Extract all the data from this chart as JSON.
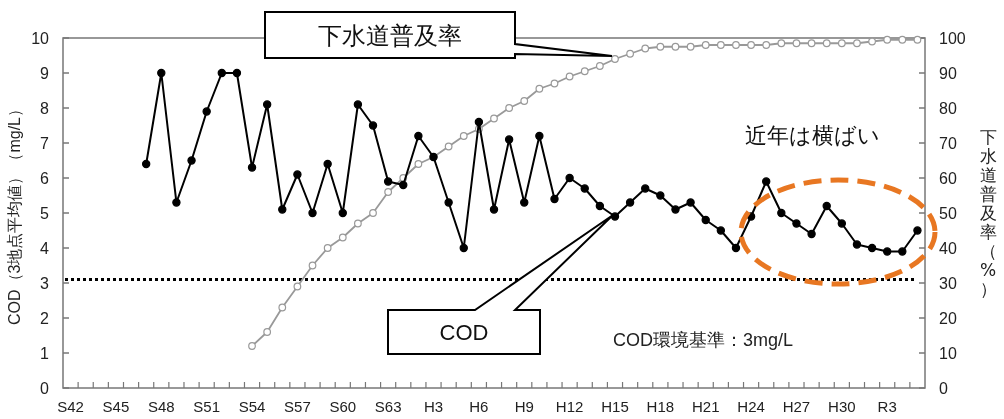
{
  "chart_data": {
    "type": "line",
    "categories": [
      "S42",
      null,
      null,
      "S45",
      null,
      null,
      "S48",
      null,
      null,
      "S51",
      null,
      null,
      "S54",
      null,
      null,
      "S57",
      null,
      null,
      "S60",
      null,
      null,
      "S63",
      null,
      null,
      "H3",
      null,
      null,
      "H6",
      null,
      null,
      "H9",
      null,
      null,
      "H12",
      null,
      null,
      "H15",
      null,
      null,
      "H18",
      null,
      null,
      "H21",
      null,
      null,
      "H24",
      null,
      null,
      "H27",
      null,
      null,
      "H30",
      null,
      null,
      "R3",
      null,
      null
    ],
    "series": [
      {
        "color": "#000000",
        "marker": "circle",
        "values": [
          null,
          null,
          null,
          null,
          null,
          6.4,
          9.0,
          5.3,
          6.5,
          7.9,
          9.0,
          9.0,
          6.3,
          8.1,
          5.1,
          6.1,
          5.0,
          6.4,
          5.0,
          8.1,
          7.5,
          5.9,
          5.8,
          7.2,
          6.6,
          5.3,
          4.0,
          7.6,
          5.1,
          7.1,
          5.3,
          7.2,
          5.4,
          6.0,
          5.7,
          5.2,
          4.9,
          5.3,
          5.7,
          5.5,
          5.1,
          5.3,
          4.8,
          4.5,
          4.0,
          4.9,
          5.9,
          5.0,
          4.7,
          4.4,
          5.2,
          4.7,
          4.1,
          4.0,
          3.9,
          3.9,
          4.5
        ]
      },
      {
        "color": "#999999",
        "marker": "circle",
        "axis": "y2",
        "values": [
          null,
          null,
          null,
          null,
          null,
          null,
          null,
          null,
          null,
          null,
          null,
          null,
          12,
          16,
          23,
          29,
          35,
          40,
          43,
          47,
          50,
          56,
          60,
          64,
          66,
          69,
          72,
          74,
          77,
          80,
          82,
          85.5,
          87,
          89,
          90.5,
          92,
          94,
          95.5,
          97,
          97.5,
          97.5,
          97.5,
          98,
          98,
          98,
          98,
          98,
          98.5,
          98.5,
          98.5,
          98.5,
          98.5,
          98.5,
          99,
          99.5,
          99.5,
          99.5
        ]
      }
    ],
    "ylabel": "COD（3地点平均値）（mg/L）",
    "y2label": "下水道普及率（%）",
    "ylim": [
      0,
      10
    ],
    "yticks": [
      0,
      1,
      2,
      3,
      4,
      5,
      6,
      7,
      8,
      9,
      10
    ],
    "y2lim": [
      0,
      100
    ],
    "y2ticks": [
      0,
      10,
      20,
      30,
      40,
      50,
      60,
      70,
      80,
      90,
      100
    ],
    "ref_lines": [
      {
        "axis": "y",
        "value": 3.1,
        "label": "COD環境基準：3mg/L",
        "color": "#000000",
        "line_style": "dotted"
      }
    ],
    "annotations": [
      "下水道普及率",
      "COD",
      "近年は横ばい"
    ],
    "grid": false
  }
}
